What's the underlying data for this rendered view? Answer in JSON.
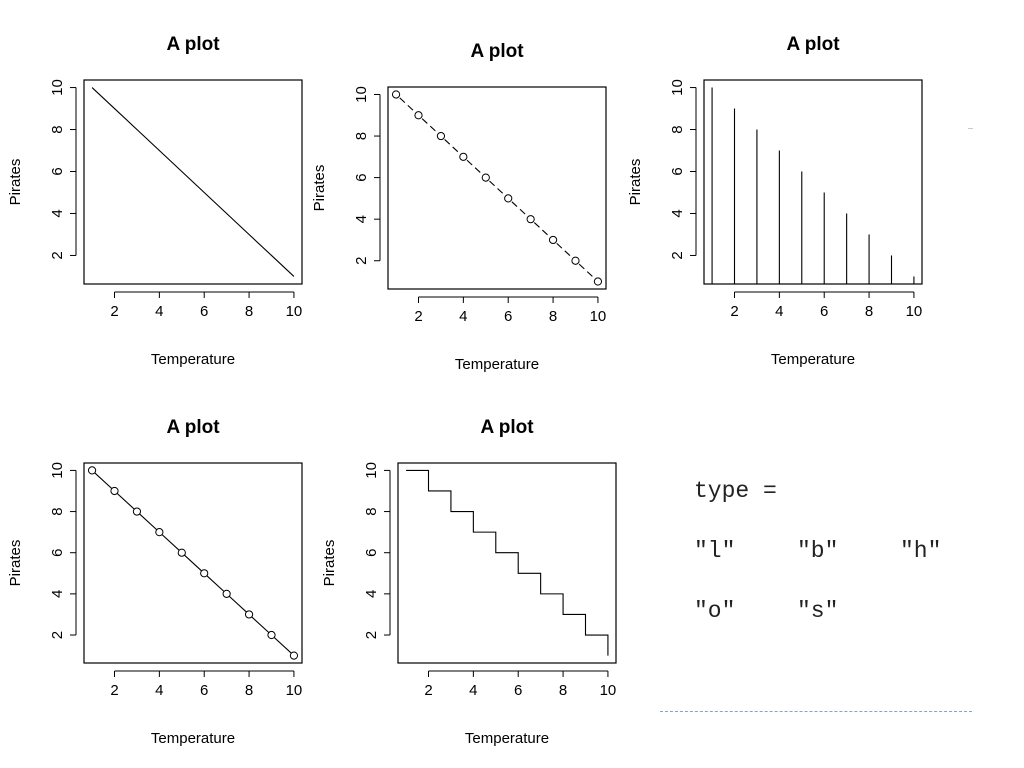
{
  "chart_data": [
    {
      "type": "line",
      "plot_type": "l",
      "title": "A plot",
      "xlabel": "Temperature",
      "ylabel": "Pirates",
      "x": [
        1,
        2,
        3,
        4,
        5,
        6,
        7,
        8,
        9,
        10
      ],
      "y": [
        10,
        9,
        8,
        7,
        6,
        5,
        4,
        3,
        2,
        1
      ],
      "xticks": [
        2,
        4,
        6,
        8,
        10
      ],
      "yticks": [
        2,
        4,
        6,
        8,
        10
      ],
      "xlim": [
        1,
        10
      ],
      "ylim": [
        1,
        10
      ]
    },
    {
      "type": "line",
      "plot_type": "b",
      "title": "A plot",
      "xlabel": "Temperature",
      "ylabel": "Pirates",
      "x": [
        1,
        2,
        3,
        4,
        5,
        6,
        7,
        8,
        9,
        10
      ],
      "y": [
        10,
        9,
        8,
        7,
        6,
        5,
        4,
        3,
        2,
        1
      ],
      "xticks": [
        2,
        4,
        6,
        8,
        10
      ],
      "yticks": [
        2,
        4,
        6,
        8,
        10
      ],
      "xlim": [
        1,
        10
      ],
      "ylim": [
        1,
        10
      ]
    },
    {
      "type": "bar",
      "plot_type": "h",
      "title": "A plot",
      "xlabel": "Temperature",
      "ylabel": "Pirates",
      "x": [
        1,
        2,
        3,
        4,
        5,
        6,
        7,
        8,
        9,
        10
      ],
      "y": [
        10,
        9,
        8,
        7,
        6,
        5,
        4,
        3,
        2,
        1
      ],
      "xticks": [
        2,
        4,
        6,
        8,
        10
      ],
      "yticks": [
        2,
        4,
        6,
        8,
        10
      ],
      "xlim": [
        1,
        10
      ],
      "ylim": [
        1,
        10
      ]
    },
    {
      "type": "line",
      "plot_type": "o",
      "title": "A plot",
      "xlabel": "Temperature",
      "ylabel": "Pirates",
      "x": [
        1,
        2,
        3,
        4,
        5,
        6,
        7,
        8,
        9,
        10
      ],
      "y": [
        10,
        9,
        8,
        7,
        6,
        5,
        4,
        3,
        2,
        1
      ],
      "xticks": [
        2,
        4,
        6,
        8,
        10
      ],
      "yticks": [
        2,
        4,
        6,
        8,
        10
      ],
      "xlim": [
        1,
        10
      ],
      "ylim": [
        1,
        10
      ]
    },
    {
      "type": "line",
      "plot_type": "s",
      "title": "A plot",
      "xlabel": "Temperature",
      "ylabel": "Pirates",
      "x": [
        1,
        2,
        3,
        4,
        5,
        6,
        7,
        8,
        9,
        10
      ],
      "y": [
        10,
        9,
        8,
        7,
        6,
        5,
        4,
        3,
        2,
        1
      ],
      "xticks": [
        2,
        4,
        6,
        8,
        10
      ],
      "yticks": [
        2,
        4,
        6,
        8,
        10
      ],
      "xlim": [
        1,
        10
      ],
      "ylim": [
        1,
        10
      ]
    }
  ],
  "legend": {
    "heading": "type =",
    "items": [
      "\"l\"",
      "\"b\"",
      "\"h\"",
      "\"o\"",
      "\"s\""
    ]
  }
}
